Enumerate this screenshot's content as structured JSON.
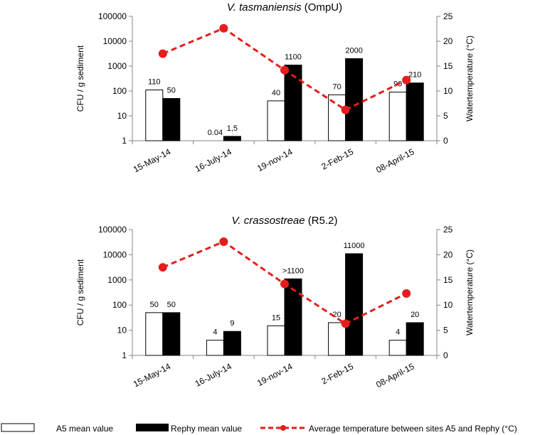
{
  "charts": [
    {
      "type": "bar+line",
      "title_italic": "V. tasmaniensis",
      "title_rest": " (OmpU)",
      "ylabel": "CFU / g sediment",
      "y2label": "Watertemperature (°C)",
      "y_scale": "log",
      "ylim": [
        1,
        100000
      ],
      "y_ticks": [
        "1",
        "10",
        "100",
        "1000",
        "10000",
        "100000"
      ],
      "y2lim": [
        0,
        25
      ],
      "y2_ticks": [
        "0",
        "5",
        "10",
        "15",
        "20",
        "25"
      ],
      "categories": [
        "15-May-14",
        "16-July-14",
        "19-nov-14",
        "2-Feb-15",
        "08-April-15"
      ],
      "series": [
        {
          "name": "A5 mean value",
          "values": [
            110,
            0.04,
            40,
            70,
            90
          ],
          "labels": [
            "110",
            "0.04",
            "40",
            "70",
            "90"
          ]
        },
        {
          "name": "Rephy  mean value",
          "values": [
            50,
            1.5,
            1100,
            2000,
            210
          ],
          "labels": [
            "50",
            "1,5",
            "1100",
            "2000",
            "210"
          ]
        }
      ],
      "line": {
        "name": "Average temperature between sites A5 and Rephy (°C)",
        "values": [
          17.5,
          22.6,
          14.2,
          6.2,
          12.2
        ]
      }
    },
    {
      "type": "bar+line",
      "title_italic": "V. crassostreae",
      "title_rest": " (R5.2)",
      "ylabel": "CFU / g sediment",
      "y2label": "Watertemperature (°C)",
      "y_scale": "log",
      "ylim": [
        1,
        100000
      ],
      "y_ticks": [
        "1",
        "10",
        "100",
        "1000",
        "10000",
        "100000"
      ],
      "y2lim": [
        0,
        25
      ],
      "y2_ticks": [
        "0",
        "5",
        "10",
        "15",
        "20",
        "25"
      ],
      "categories": [
        "15-May-14",
        "16-July-14",
        "19-nov-14",
        "2-Feb-15",
        "08-April-15"
      ],
      "series": [
        {
          "name": "A5 mean value",
          "values": [
            50,
            4,
            15,
            20,
            4
          ],
          "labels": [
            "50",
            "4",
            "15",
            "20",
            "4"
          ]
        },
        {
          "name": "Rephy  mean value",
          "values": [
            50,
            9,
            1100,
            11000,
            20
          ],
          "labels": [
            "50",
            "9",
            ">1100",
            "11000",
            "20"
          ]
        }
      ],
      "line": {
        "name": "Average temperature between sites A5 and Rephy (°C)",
        "values": [
          17.5,
          22.6,
          14.2,
          6.3,
          12.3
        ]
      }
    }
  ],
  "legend": {
    "a5": "A5 mean value",
    "rephy": "Rephy  mean value",
    "temp": "Average temperature between sites A5 and Rephy (°C)"
  },
  "colors": {
    "line": "#e41e1e",
    "bar_a5_fill": "#ffffff",
    "bar_rephy_fill": "#000000",
    "axis": "#868686"
  }
}
